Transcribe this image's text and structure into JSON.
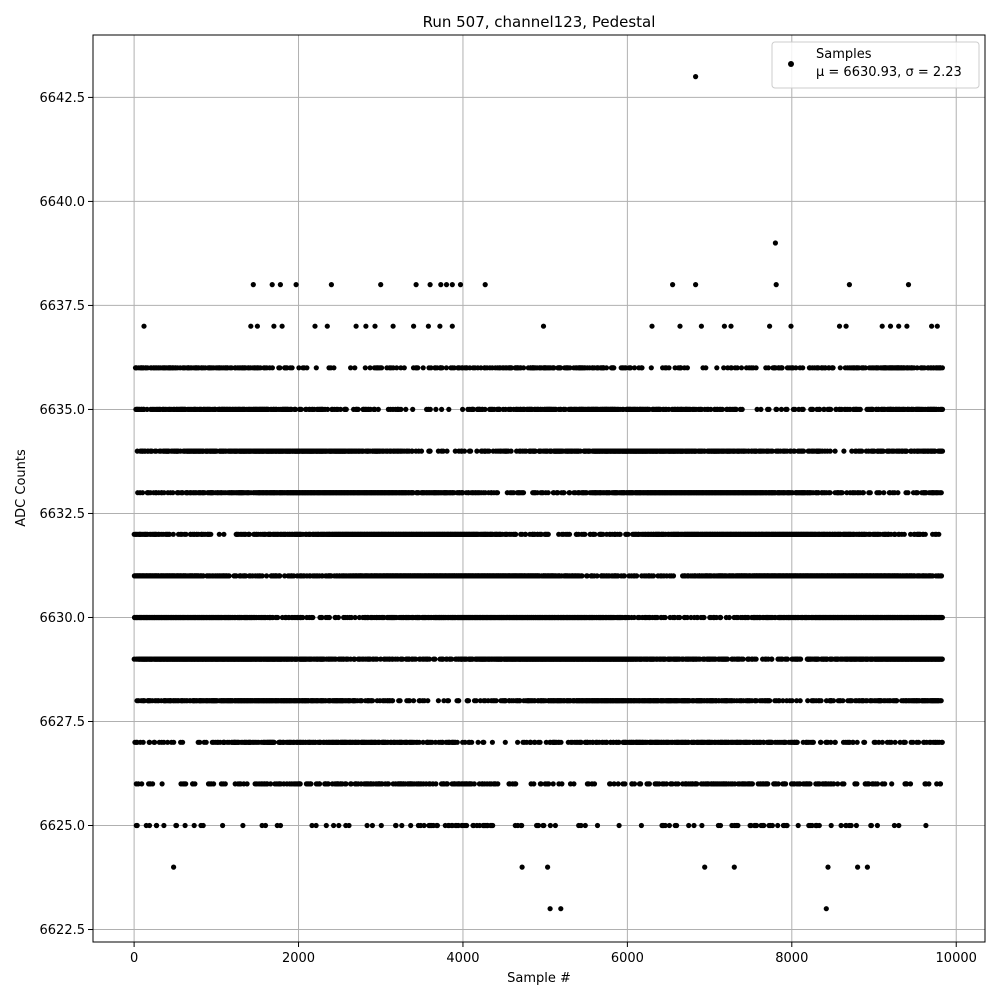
{
  "chart_data": {
    "type": "scatter",
    "title": "Run 507, channel123, Pedestal",
    "xlabel": "Sample #",
    "ylabel": "ADC Counts",
    "xlim": [
      -500,
      10350
    ],
    "ylim": [
      6622.2,
      6644.0
    ],
    "xticks": [
      0,
      2000,
      4000,
      6000,
      8000,
      10000
    ],
    "xtick_labels": [
      "0",
      "2000",
      "4000",
      "6000",
      "8000",
      "10000"
    ],
    "yticks": [
      6622.5,
      6625.0,
      6627.5,
      6630.0,
      6632.5,
      6635.0,
      6637.5,
      6640.0,
      6642.5
    ],
    "ytick_labels": [
      "6622.5",
      "6625.0",
      "6627.5",
      "6630.0",
      "6632.5",
      "6635.0",
      "6637.5",
      "6640.0",
      "6642.5"
    ],
    "grid": true,
    "legend_position": "top-right",
    "marker_color": "#000000",
    "series": [
      {
        "name": "Samples",
        "legend_stats": "μ = 6630.93, σ = 2.23",
        "x_range": [
          0,
          9830
        ],
        "points": [
          [
            6830,
            6643
          ],
          [
            7800,
            6639
          ],
          [
            1450,
            6638
          ],
          [
            1680,
            6638
          ],
          [
            1780,
            6638
          ],
          [
            1970,
            6638
          ],
          [
            2400,
            6638
          ],
          [
            3000,
            6638
          ],
          [
            3430,
            6638
          ],
          [
            3600,
            6638
          ],
          [
            3730,
            6638
          ],
          [
            3800,
            6638
          ],
          [
            3870,
            6638
          ],
          [
            3970,
            6638
          ],
          [
            4270,
            6638
          ],
          [
            6550,
            6638
          ],
          [
            6830,
            6638
          ],
          [
            7810,
            6638
          ],
          [
            8700,
            6638
          ],
          [
            9420,
            6638
          ],
          [
            120,
            6637
          ],
          [
            1420,
            6637
          ],
          [
            1500,
            6637
          ],
          [
            1700,
            6637
          ],
          [
            1800,
            6637
          ],
          [
            2200,
            6637
          ],
          [
            2350,
            6637
          ],
          [
            2700,
            6637
          ],
          [
            2820,
            6637
          ],
          [
            2930,
            6637
          ],
          [
            3150,
            6637
          ],
          [
            3400,
            6637
          ],
          [
            3580,
            6637
          ],
          [
            3720,
            6637
          ],
          [
            3870,
            6637
          ],
          [
            4980,
            6637
          ],
          [
            6300,
            6637
          ],
          [
            6640,
            6637
          ],
          [
            6900,
            6637
          ],
          [
            7180,
            6637
          ],
          [
            7260,
            6637
          ],
          [
            7730,
            6637
          ],
          [
            7990,
            6637
          ],
          [
            8580,
            6637
          ],
          [
            8660,
            6637
          ],
          [
            9100,
            6637
          ],
          [
            9200,
            6637
          ],
          [
            9300,
            6637
          ],
          [
            9400,
            6637
          ],
          [
            9700,
            6637
          ],
          [
            9770,
            6637
          ],
          [
            480,
            6624
          ],
          [
            4720,
            6624
          ],
          [
            5030,
            6624
          ],
          [
            6940,
            6624
          ],
          [
            7300,
            6624
          ],
          [
            8440,
            6624
          ],
          [
            8800,
            6624
          ],
          [
            8920,
            6624
          ],
          [
            5060,
            6623
          ],
          [
            5190,
            6623
          ],
          [
            8420,
            6623
          ]
        ],
        "dense_rows": [
          {
            "y": 6636,
            "density": 0.35
          },
          {
            "y": 6635,
            "density": 0.55
          },
          {
            "y": 6634,
            "density": 0.75
          },
          {
            "y": 6633,
            "density": 0.9
          },
          {
            "y": 6632,
            "density": 0.95
          },
          {
            "y": 6631,
            "density": 0.97
          },
          {
            "y": 6630,
            "density": 0.97
          },
          {
            "y": 6629,
            "density": 0.9
          },
          {
            "y": 6628,
            "density": 0.75
          },
          {
            "y": 6627,
            "density": 0.55
          },
          {
            "y": 6626,
            "density": 0.35
          },
          {
            "y": 6625,
            "density": 0.12
          }
        ]
      }
    ]
  }
}
